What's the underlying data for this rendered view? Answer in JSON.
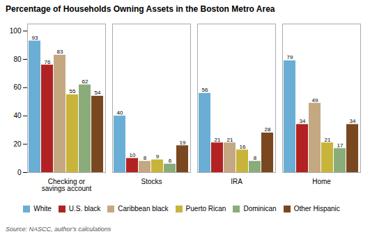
{
  "chart_data": {
    "type": "bar",
    "title": "Percentage of Households Owning Assets in the Boston Metro Area",
    "categories": [
      "Checking or\nsavings account",
      "Stocks",
      "IRA",
      "Home"
    ],
    "series": [
      {
        "name": "White",
        "color": "#6aaed6",
        "values": [
          93,
          40,
          56,
          79
        ]
      },
      {
        "name": "U.S. black",
        "color": "#b22222",
        "values": [
          76,
          10,
          21,
          34
        ]
      },
      {
        "name": "Caribbean black",
        "color": "#c4a882",
        "values": [
          83,
          8,
          21,
          49
        ]
      },
      {
        "name": "Puerto Rican",
        "color": "#c8b43a",
        "values": [
          55,
          9,
          16,
          21
        ]
      },
      {
        "name": "Dominican",
        "color": "#8aac7a",
        "values": [
          62,
          6,
          8,
          17
        ]
      },
      {
        "name": "Other Hispanic",
        "color": "#7a4820",
        "values": [
          54,
          19,
          28,
          34
        ]
      }
    ],
    "ylim": [
      0,
      105
    ],
    "yticks": [
      0,
      20,
      40,
      60,
      80,
      100
    ],
    "grid": false,
    "data_labels": true,
    "legend": "bottom",
    "source": "Source: NASCC, author's calculations"
  }
}
